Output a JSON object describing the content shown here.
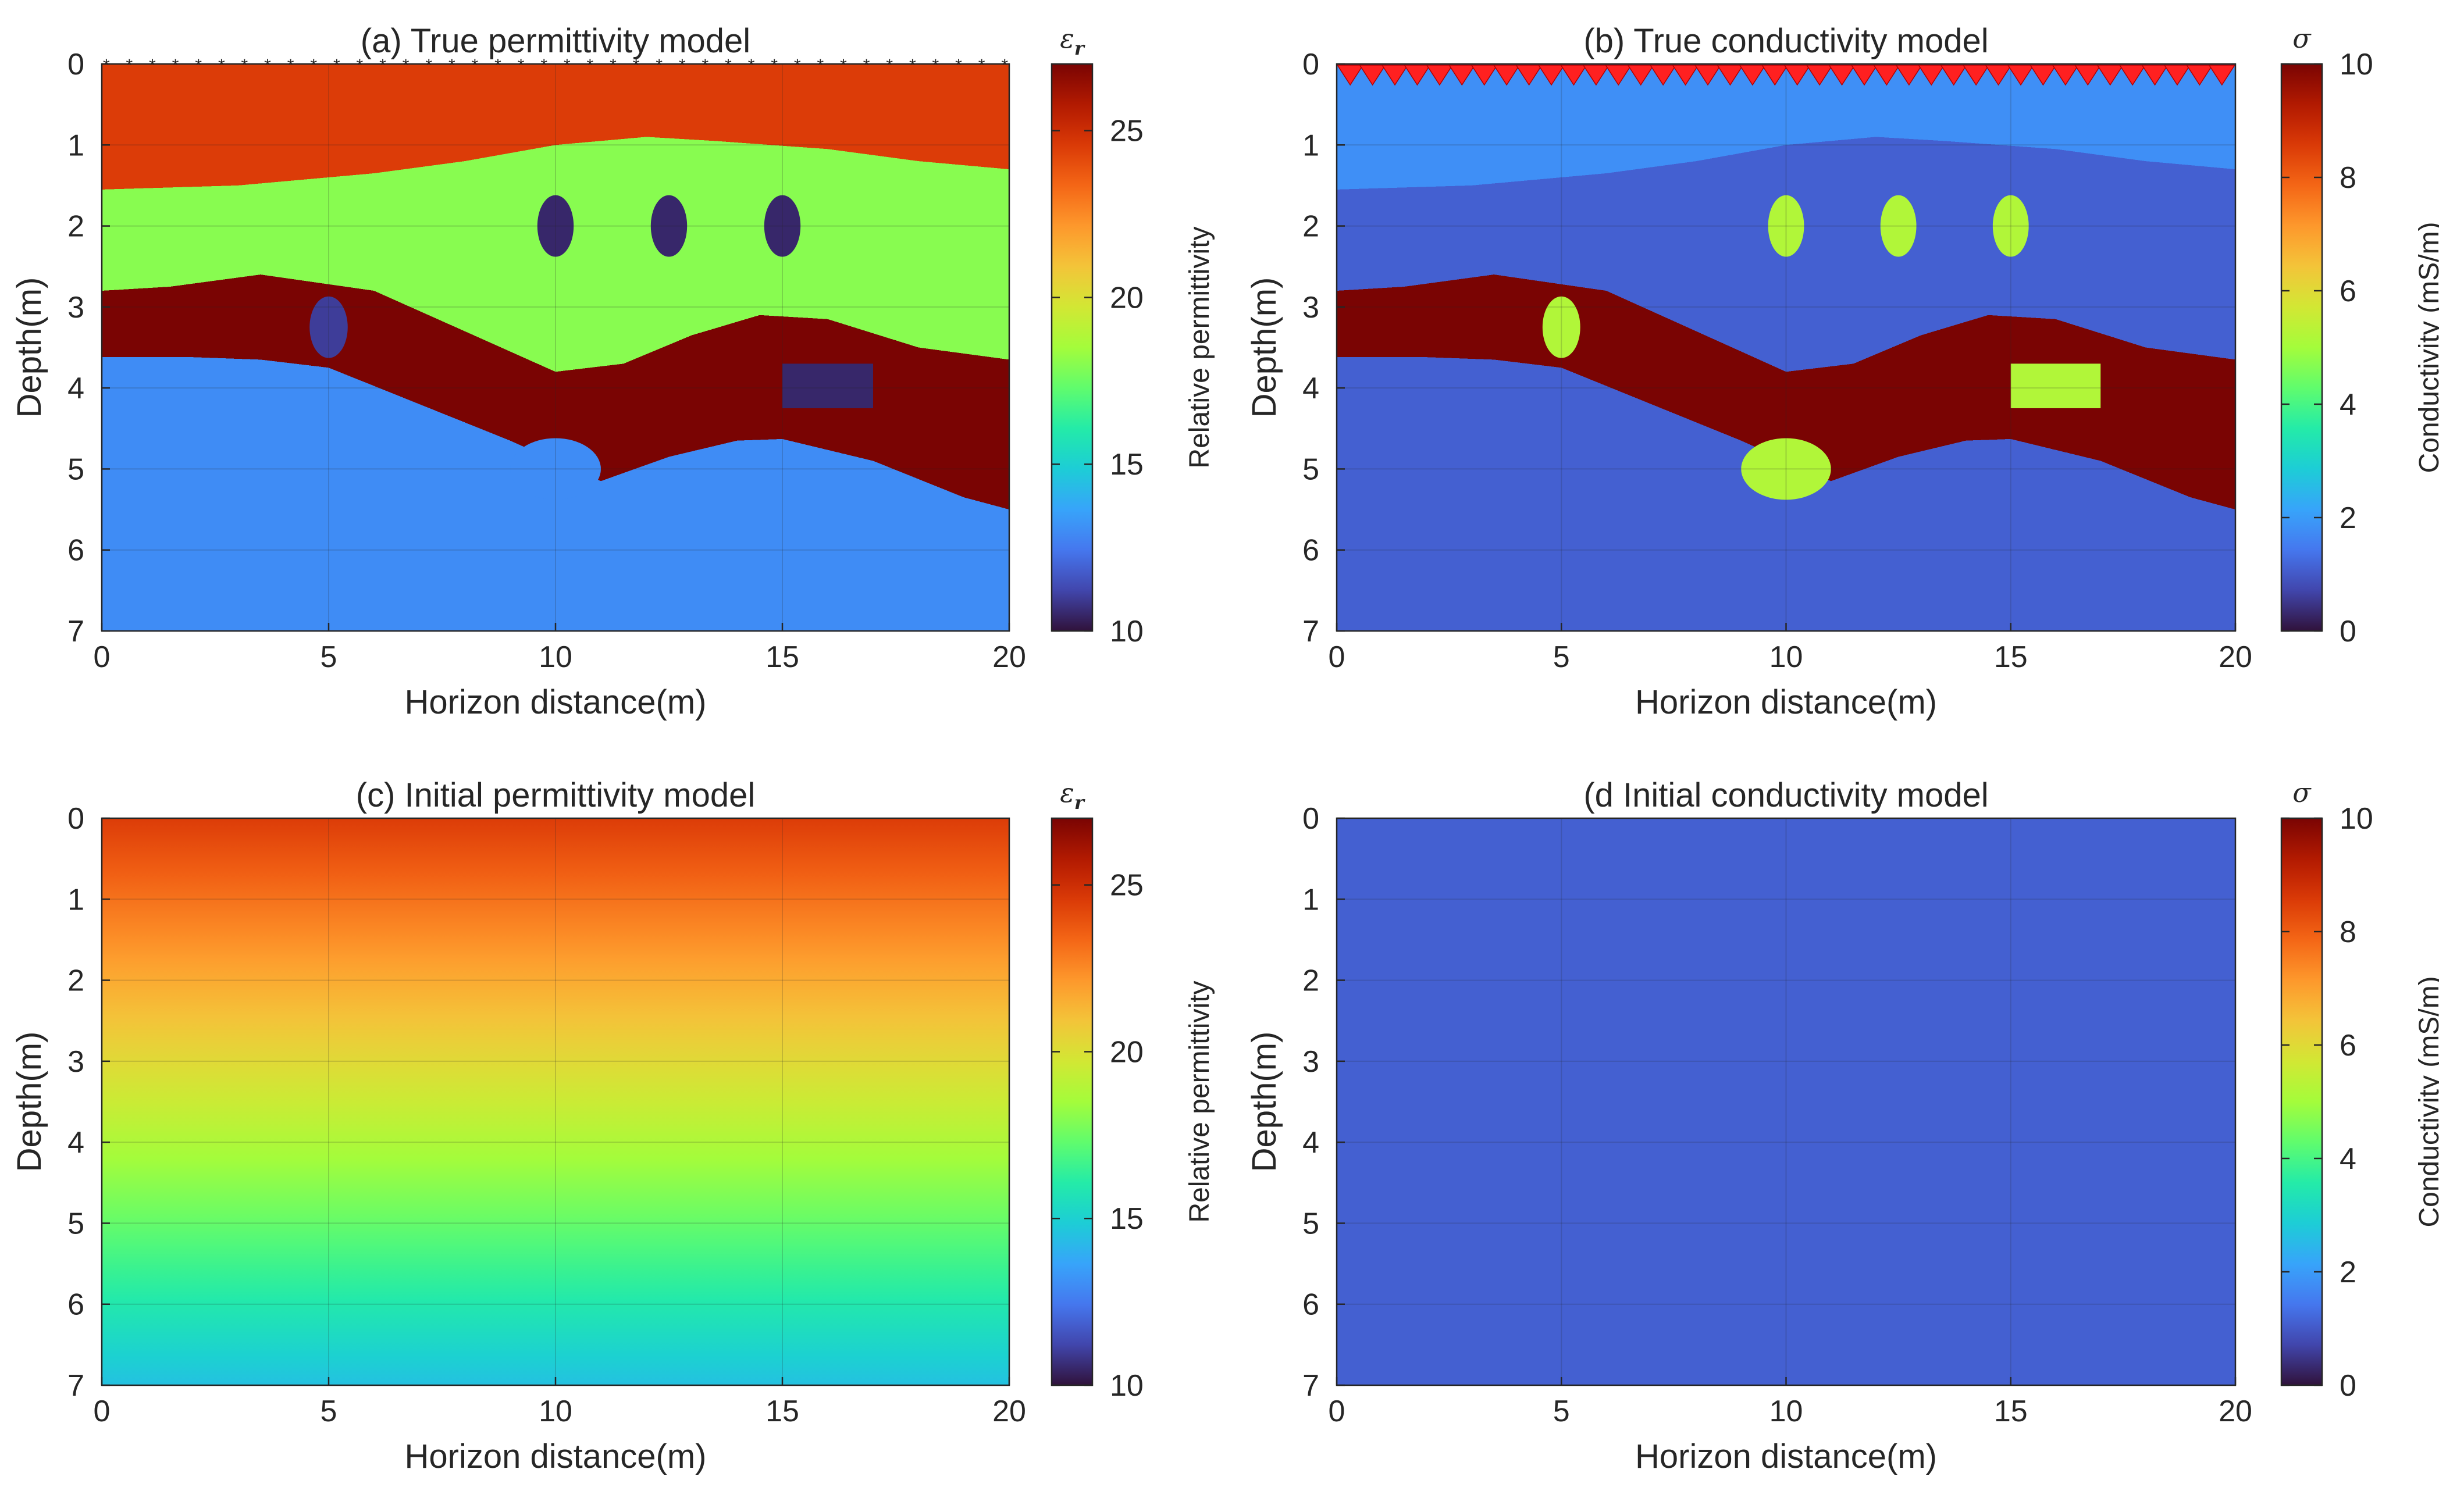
{
  "chart_data": [
    {
      "type": "heatmap",
      "panel": "a",
      "title": "(a) True permittivity model",
      "xlabel": "Horizon distance(m)",
      "ylabel": "Depth(m)",
      "xlim": [
        0,
        20
      ],
      "ylim": [
        0,
        7
      ],
      "xticks": [
        "0",
        "5",
        "10",
        "15",
        "20"
      ],
      "yticks": [
        "0",
        "1",
        "2",
        "3",
        "4",
        "5",
        "6",
        "7"
      ],
      "y_reversed": true,
      "grid": true,
      "colorbar": {
        "symbol": "ε",
        "subscript": "r",
        "label": "Relative permittivity",
        "range": [
          10,
          27
        ],
        "ticks": [
          "10",
          "15",
          "20",
          "25"
        ]
      },
      "model": {
        "layers": [
          {
            "name": "top",
            "value": 24.5
          },
          {
            "name": "layer2",
            "value": 18
          },
          {
            "name": "layer3",
            "value": 27
          },
          {
            "name": "bottom",
            "value": 13
          }
        ],
        "inclusions": [
          {
            "shape": "ellipse",
            "x": 10,
            "y": 2.0,
            "value": 10.5
          },
          {
            "shape": "ellipse",
            "x": 12.5,
            "y": 2.0,
            "value": 10.5
          },
          {
            "shape": "ellipse",
            "x": 15,
            "y": 2.0,
            "value": 10.5
          },
          {
            "shape": "ellipse",
            "x": 5,
            "y": 3.25,
            "value": 11
          },
          {
            "shape": "rectangle",
            "x": [
              15,
              17
            ],
            "y": [
              3.7,
              4.25
            ],
            "value": 10.5
          },
          {
            "shape": "ellipse",
            "x": 10,
            "y": 5.0,
            "value": 13
          }
        ],
        "receivers": {
          "marker": "star",
          "count": 40,
          "depth": 0
        }
      }
    },
    {
      "type": "heatmap",
      "panel": "b",
      "title": "(b) True conductivity model",
      "xlabel": "Horizon distance(m)",
      "ylabel": "Depth(m)",
      "xlim": [
        0,
        20
      ],
      "ylim": [
        0,
        7
      ],
      "xticks": [
        "0",
        "5",
        "10",
        "15",
        "20"
      ],
      "yticks": [
        "0",
        "1",
        "2",
        "3",
        "4",
        "5",
        "6",
        "7"
      ],
      "y_reversed": true,
      "grid": true,
      "colorbar": {
        "symbol": "σ",
        "label": "Conductivity (mS/m)",
        "range": [
          0,
          10
        ],
        "ticks": [
          "0",
          "2",
          "4",
          "6",
          "8",
          "10"
        ]
      },
      "model": {
        "layers": [
          {
            "name": "top",
            "value": 1.8
          },
          {
            "name": "layer2",
            "value": 1.1
          },
          {
            "name": "layer3",
            "value": 10
          },
          {
            "name": "bottom",
            "value": 1.1
          }
        ],
        "inclusions": [
          {
            "shape": "ellipse",
            "x": 10,
            "y": 2.0,
            "value": 5.2
          },
          {
            "shape": "ellipse",
            "x": 12.5,
            "y": 2.0,
            "value": 5.2
          },
          {
            "shape": "ellipse",
            "x": 15,
            "y": 2.0,
            "value": 5.2
          },
          {
            "shape": "ellipse",
            "x": 5,
            "y": 3.25,
            "value": 5.2
          },
          {
            "shape": "rectangle",
            "x": [
              15,
              17
            ],
            "y": [
              3.7,
              4.25
            ],
            "value": 5.2
          },
          {
            "shape": "ellipse",
            "x": 10,
            "y": 5.0,
            "value": 5.2
          }
        ],
        "sources": {
          "marker": "triangle",
          "color": "#ff2020",
          "count": 40,
          "depth": 0
        }
      }
    },
    {
      "type": "heatmap",
      "panel": "c",
      "title": "(c) Initial permittivity model",
      "xlabel": "Horizon distance(m)",
      "ylabel": "Depth(m)",
      "xlim": [
        0,
        20
      ],
      "ylim": [
        0,
        7
      ],
      "xticks": [
        "0",
        "5",
        "10",
        "15",
        "20"
      ],
      "yticks": [
        "0",
        "1",
        "2",
        "3",
        "4",
        "5",
        "6",
        "7"
      ],
      "y_reversed": true,
      "grid": true,
      "colorbar": {
        "symbol": "ε",
        "subscript": "r",
        "label": "Relative permittivity",
        "range": [
          10,
          27
        ],
        "ticks": [
          "10",
          "15",
          "20",
          "25"
        ]
      },
      "model": {
        "gradient": {
          "depth": [
            0,
            7
          ],
          "value": [
            24.5,
            14.5
          ]
        }
      }
    },
    {
      "type": "heatmap",
      "panel": "d",
      "title": "(d Initial conductivity model",
      "xlabel": "Horizon distance(m)",
      "ylabel": "Depth(m)",
      "xlim": [
        0,
        20
      ],
      "ylim": [
        0,
        7
      ],
      "xticks": [
        "0",
        "5",
        "10",
        "15",
        "20"
      ],
      "yticks": [
        "0",
        "1",
        "2",
        "3",
        "4",
        "5",
        "6",
        "7"
      ],
      "y_reversed": true,
      "grid": true,
      "colorbar": {
        "symbol": "σ",
        "label": "Conductivity (mS/m)",
        "range": [
          0,
          10
        ],
        "ticks": [
          "0",
          "2",
          "4",
          "6",
          "8",
          "10"
        ]
      },
      "model": {
        "uniform": 1.1
      }
    }
  ]
}
